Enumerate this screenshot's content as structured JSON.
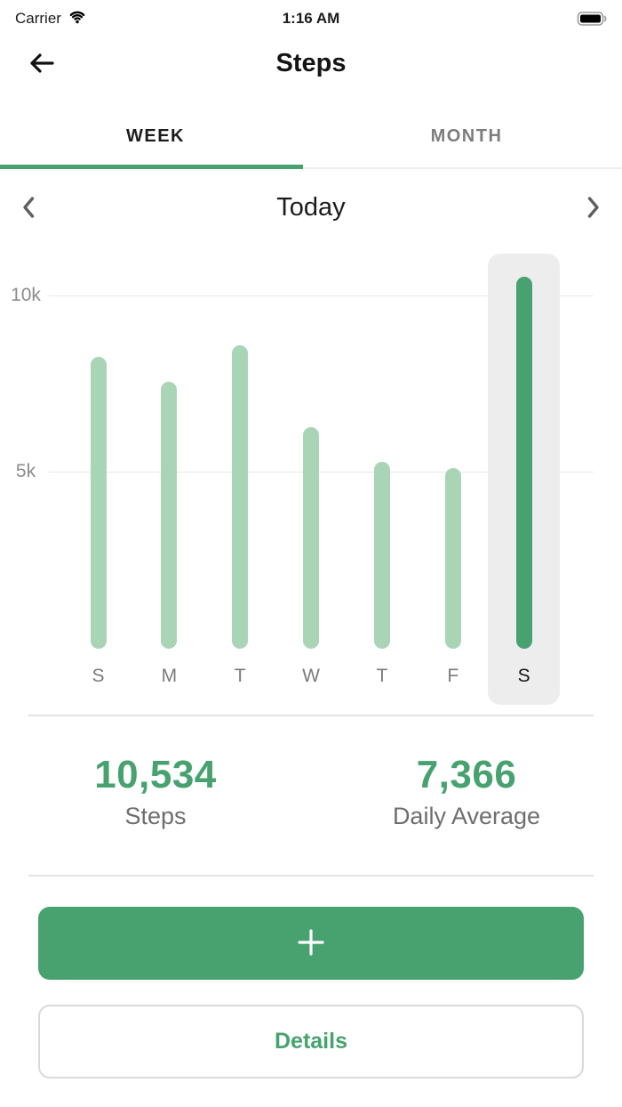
{
  "status_bar": {
    "carrier": "Carrier",
    "time": "1:16 AM"
  },
  "header": {
    "title": "Steps"
  },
  "tabs": [
    {
      "label": "WEEK",
      "active": true
    },
    {
      "label": "MONTH",
      "active": false
    }
  ],
  "period_nav": {
    "label": "Today"
  },
  "chart_data": {
    "type": "bar",
    "title": "",
    "xlabel": "",
    "ylabel": "",
    "categories": [
      "S",
      "M",
      "T",
      "W",
      "T",
      "F",
      "S"
    ],
    "values": [
      8250,
      7550,
      8600,
      6250,
      5280,
      5100,
      10534
    ],
    "selected_index": 6,
    "selected_value": 10534,
    "yticks": [
      {
        "label": "10k",
        "value": 10000
      },
      {
        "label": "5k",
        "value": 5000
      }
    ],
    "ylim": [
      0,
      11200
    ],
    "grid": "horizontal",
    "legend": "none"
  },
  "stats": [
    {
      "value": "10,534",
      "label": "Steps"
    },
    {
      "value": "7,366",
      "label": "Daily Average"
    }
  ],
  "buttons": {
    "details": "Details"
  },
  "icons": {
    "wifi": "wifi-icon",
    "battery": "battery-icon",
    "back": "arrow-left-icon",
    "prev": "chevron-left-icon",
    "next": "chevron-right-icon",
    "add": "plus-icon"
  },
  "colors": {
    "accent": "#47A26F",
    "bar": "#A9D5B6",
    "bar_selected": "#47A170",
    "selection_bg": "#EDEDED",
    "gridline": "#E9E9E9",
    "divider": "#E3E3E3",
    "tab_inactive": "#7D7D7D",
    "axis_label": "#8C8C8C",
    "day_label": "#7B7B7B",
    "stat_label": "#6E6E6E",
    "details_border": "#D9D9D9"
  }
}
